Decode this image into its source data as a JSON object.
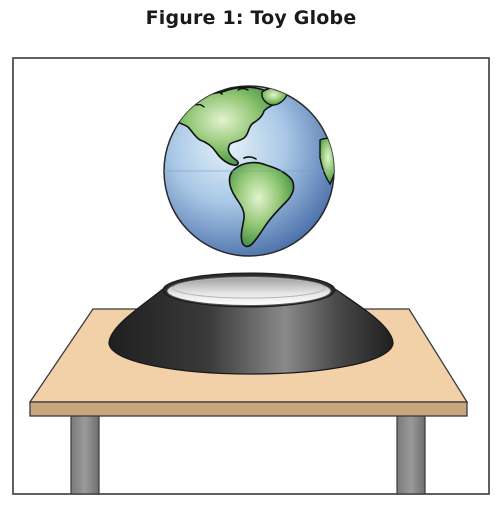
{
  "figure": {
    "title": "Figure 1: Toy Globe"
  },
  "colors": {
    "frame": "#3a3a3a",
    "ocean_light": "#cfe3f3",
    "ocean_dark": "#3f67a6",
    "land_light": "#d7ecc0",
    "land_dark": "#2f8a3a",
    "base_dark": "#2a2a2a",
    "base_mid": "#6a6a6a",
    "dish_light": "#f0f0f0",
    "table_top": "#f2d1a8",
    "table_edge": "#c9a67e",
    "table_leg": "#8a8a8a"
  }
}
